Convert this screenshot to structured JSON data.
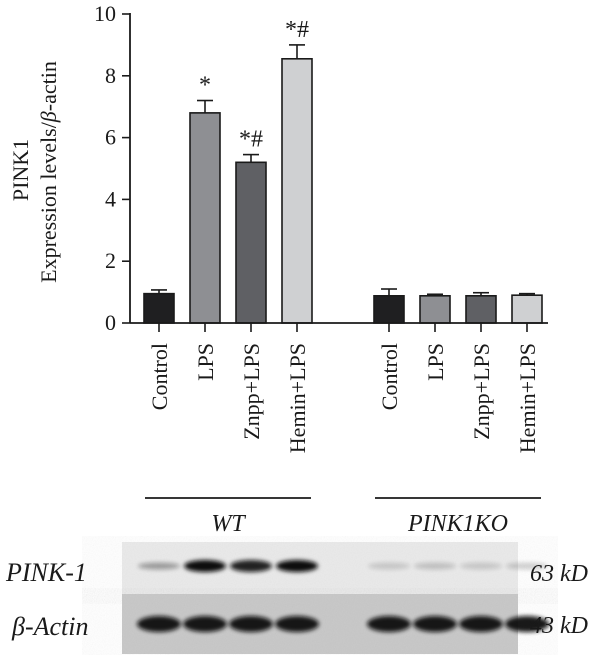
{
  "chart_data": {
    "type": "bar",
    "ylabel_line1": "PINK1",
    "ylabel_line2_pre": "Expression levels/",
    "ylabel_line2_beta": "β",
    "ylabel_line2_post": "-actin",
    "ylim": [
      0,
      10
    ],
    "yticks": [
      "0",
      "2",
      "4",
      "6",
      "8",
      "10"
    ],
    "categories": [
      "Control",
      "LPS",
      "Znpp+LPS",
      "Hemin+LPS",
      "Control",
      "LPS",
      "Znpp+LPS",
      "Hemin+LPS"
    ],
    "values": [
      0.95,
      6.8,
      5.2,
      8.55,
      0.88,
      0.88,
      0.88,
      0.9
    ],
    "errors": [
      0.12,
      0.4,
      0.25,
      0.45,
      0.22,
      0.05,
      0.1,
      0.05
    ],
    "annotations": [
      "",
      "*",
      "*#",
      "*#",
      "",
      "",
      "",
      ""
    ],
    "bar_colors": [
      "#1f1f21",
      "#8e8f93",
      "#5f6064",
      "#cfd0d2",
      "#1f1f21",
      "#8e8f93",
      "#5f6064",
      "#cfd0d2"
    ],
    "groups": [
      {
        "label": "WT",
        "start": 0,
        "end": 3
      },
      {
        "label": "PINK1KO",
        "start": 4,
        "end": 7
      }
    ]
  },
  "blot": {
    "rows": [
      {
        "label": "PINK-1",
        "size": "63 kD"
      },
      {
        "label": "β-Actin",
        "size": "43 kD"
      }
    ]
  }
}
